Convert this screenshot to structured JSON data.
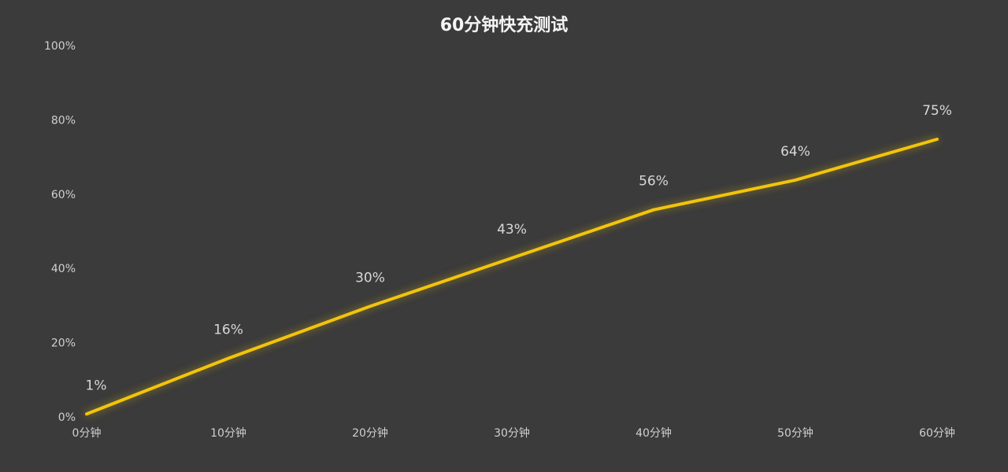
{
  "chart_data": {
    "type": "line",
    "title": "60分钟快充测试",
    "categories": [
      "0分钟",
      "10分钟",
      "20分钟",
      "30分钟",
      "40分钟",
      "50分钟",
      "60分钟"
    ],
    "values": [
      1,
      16,
      30,
      43,
      56,
      64,
      75
    ],
    "value_labels": [
      "1%",
      "16%",
      "30%",
      "43%",
      "56%",
      "64%",
      "75%"
    ],
    "color": "#f2c40c",
    "ylim": [
      0,
      100
    ],
    "yticks": [
      {
        "value": 0,
        "label": "0%"
      },
      {
        "value": 20,
        "label": "20%"
      },
      {
        "value": 40,
        "label": "40%"
      },
      {
        "value": 60,
        "label": "60%"
      },
      {
        "value": 80,
        "label": "80%"
      },
      {
        "value": 100,
        "label": "100%"
      }
    ],
    "grid": false
  }
}
